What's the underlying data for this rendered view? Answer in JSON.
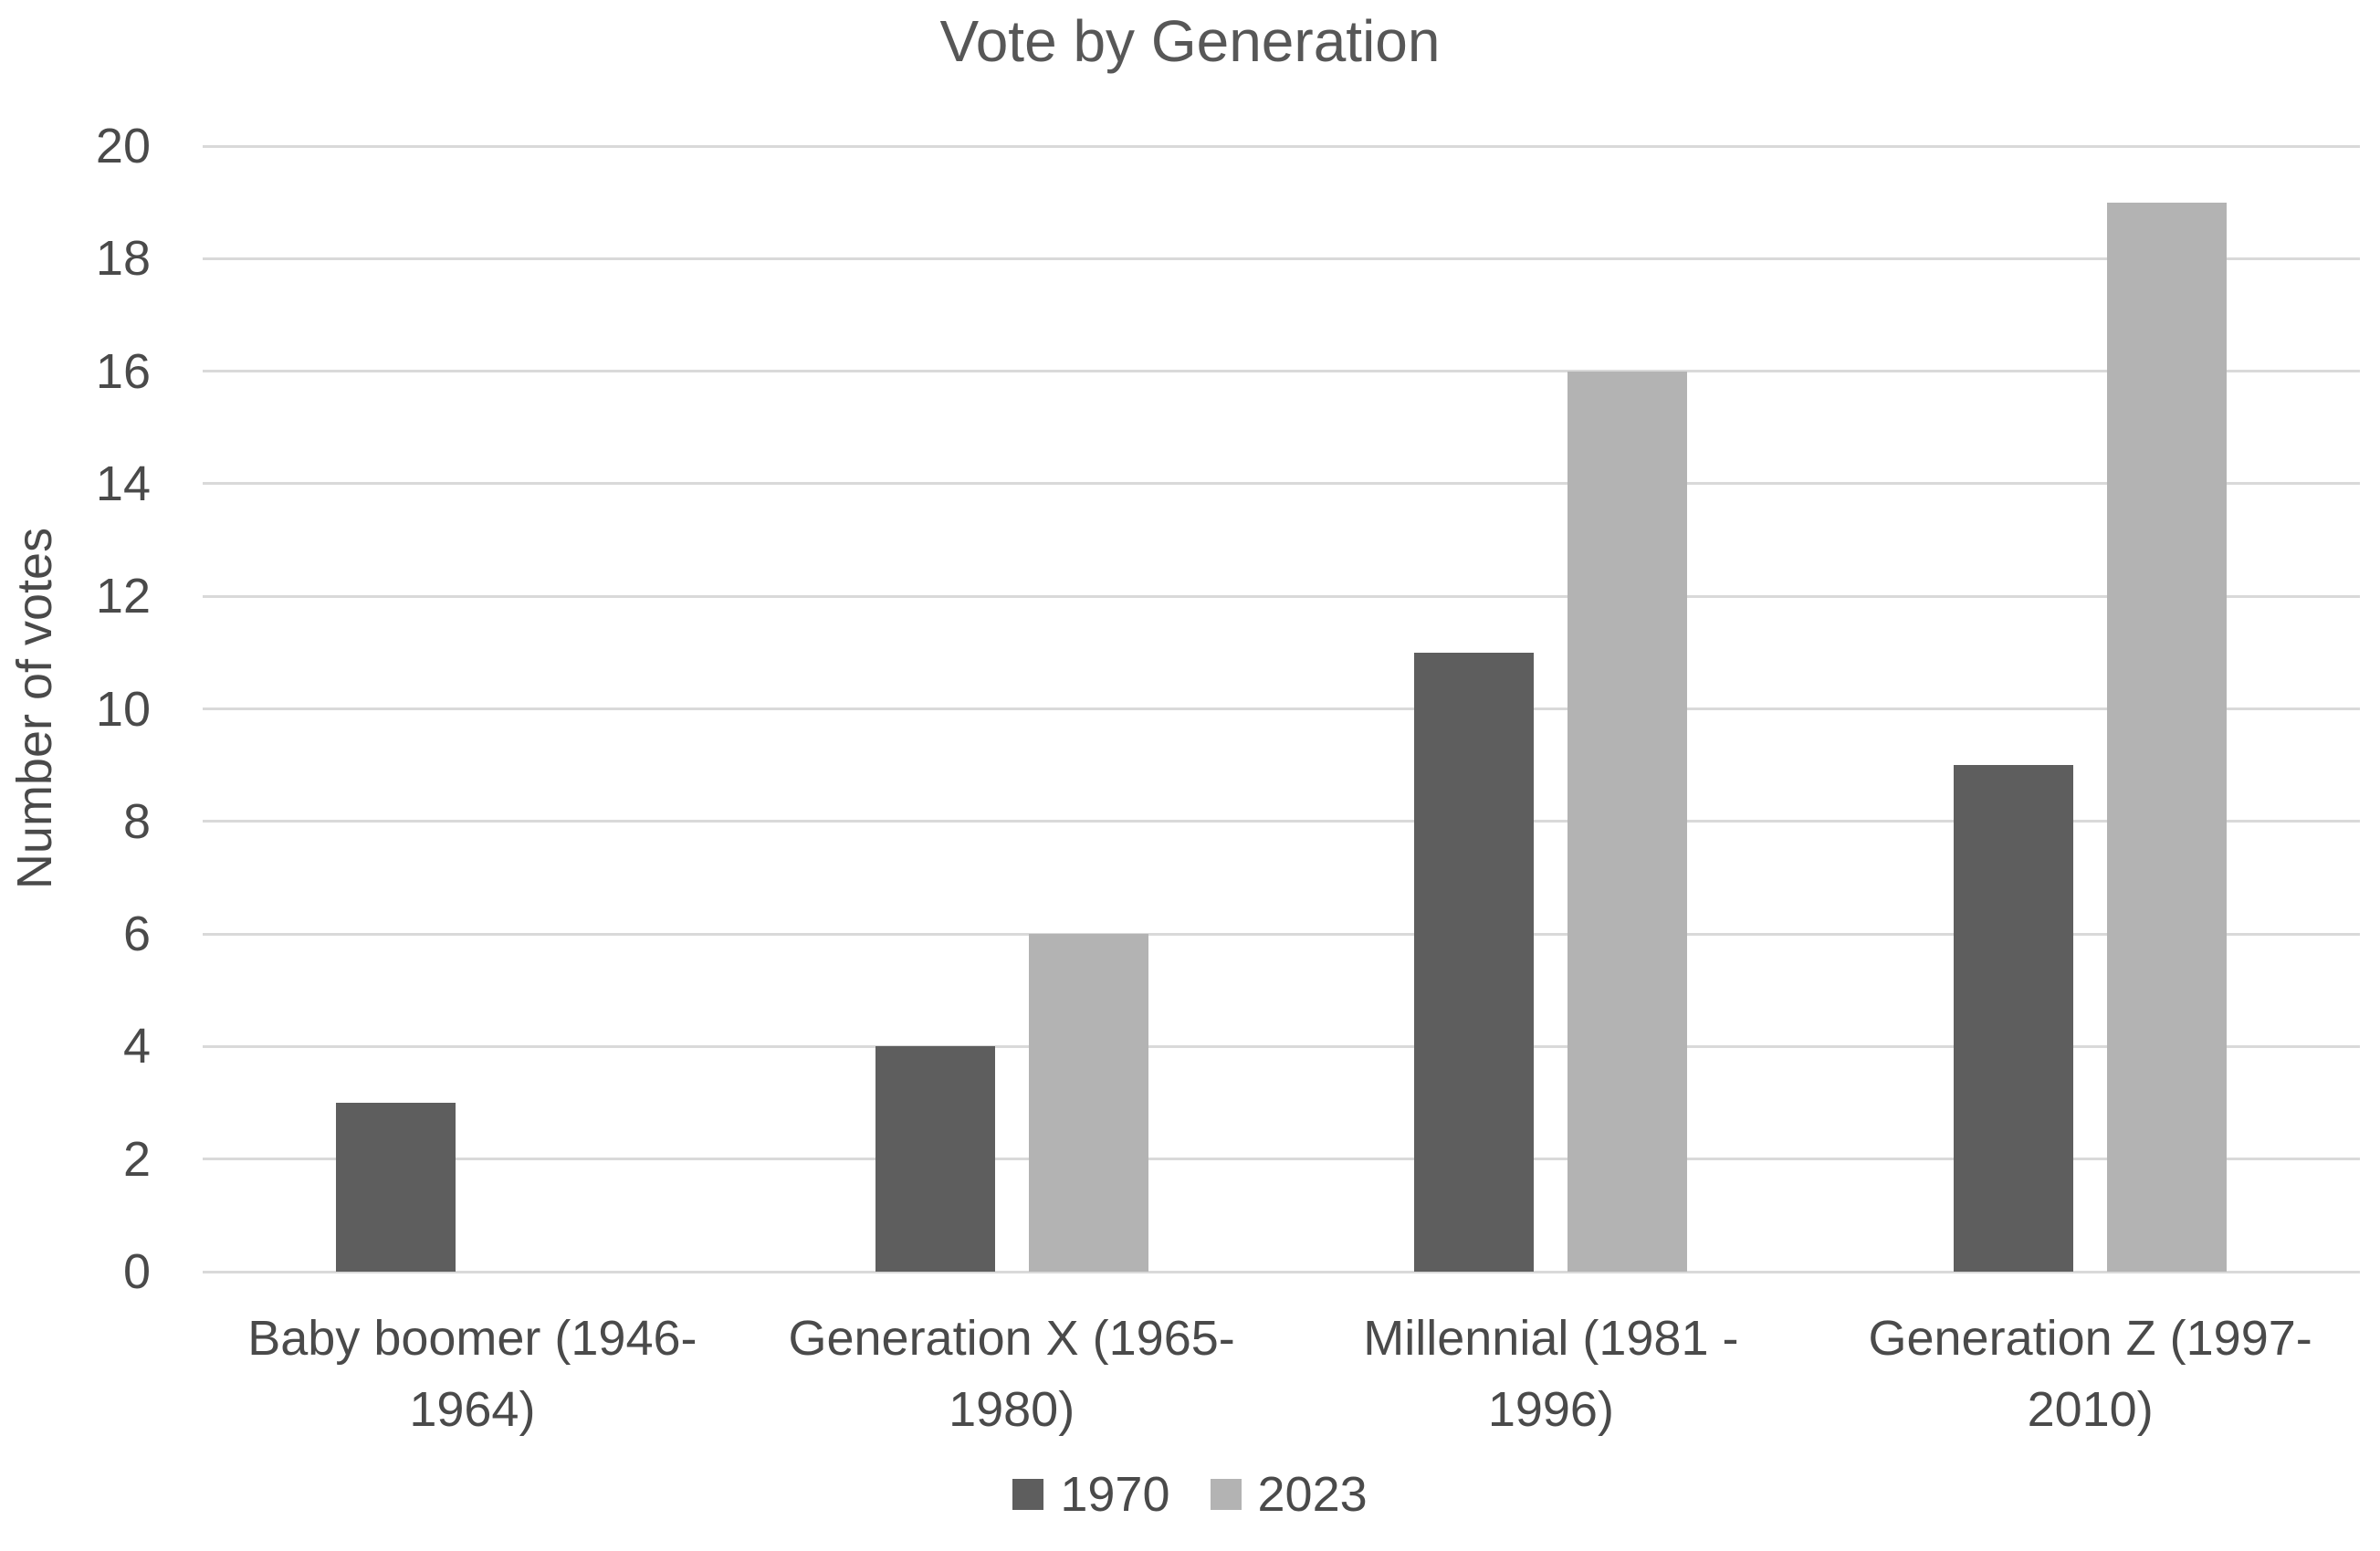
{
  "chart_data": {
    "type": "bar",
    "title": "Vote by Generation",
    "ylabel": "Number of votes",
    "xlabel": "",
    "categories": [
      "Baby boomer (1946-1964)",
      "Generation X (1965-1980)",
      "Millennial (1981 - 1996)",
      "Generation Z (1997-2010)"
    ],
    "series": [
      {
        "name": "1970",
        "color": "#5E5E5E",
        "values": [
          3,
          4,
          11,
          9
        ]
      },
      {
        "name": "2023",
        "color": "#B3B3B3",
        "values": [
          0,
          6,
          16,
          19
        ]
      }
    ],
    "ylim": [
      0,
      20
    ],
    "ytick_step": 2,
    "grid": true,
    "legend_position": "bottom",
    "colors": {
      "gridline": "#D9D9D9",
      "axis_line": "#D9D9D9",
      "title_text": "#575757",
      "label_text": "#4A4A4A"
    }
  }
}
